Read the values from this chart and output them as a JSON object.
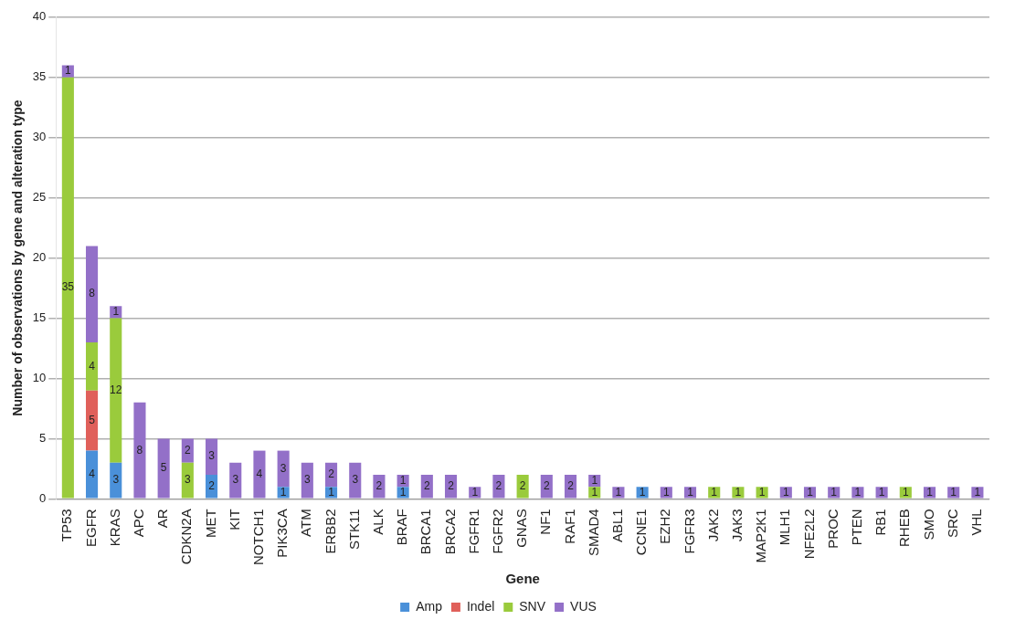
{
  "chart_data": {
    "type": "bar",
    "stacked": true,
    "xlabel": "Gene",
    "ylabel": "Number of observations by gene and alteration type",
    "categories": [
      "TP53",
      "EGFR",
      "KRAS",
      "APC",
      "AR",
      "CDKN2A",
      "MET",
      "KIT",
      "NOTCH1",
      "PIK3CA",
      "ATM",
      "ERBB2",
      "STK11",
      "ALK",
      "BRAF",
      "BRCA1",
      "BRCA2",
      "FGFR1",
      "FGFR2",
      "GNAS",
      "NF1",
      "RAF1",
      "SMAD4",
      "ABL1",
      "CCNE1",
      "EZH2",
      "FGFR3",
      "JAK2",
      "JAK3",
      "MAP2K1",
      "MLH1",
      "NFE2L2",
      "PROC",
      "PTEN",
      "RB1",
      "RHEB",
      "SMO",
      "SRC",
      "VHL"
    ],
    "series": [
      {
        "name": "Amp",
        "color": "#4a90d9",
        "values": [
          null,
          4,
          3,
          null,
          null,
          null,
          2,
          null,
          null,
          1,
          null,
          1,
          null,
          null,
          1,
          null,
          null,
          null,
          null,
          null,
          null,
          null,
          null,
          null,
          1,
          null,
          null,
          null,
          null,
          null,
          null,
          null,
          null,
          null,
          null,
          null,
          null,
          null,
          null
        ]
      },
      {
        "name": "Indel",
        "color": "#e0605a",
        "values": [
          null,
          5,
          null,
          null,
          null,
          null,
          null,
          null,
          null,
          null,
          null,
          null,
          null,
          null,
          null,
          null,
          null,
          null,
          null,
          null,
          null,
          null,
          null,
          null,
          null,
          null,
          null,
          null,
          null,
          null,
          null,
          null,
          null,
          null,
          null,
          null,
          null,
          null,
          null
        ]
      },
      {
        "name": "SNV",
        "color": "#9acb3c",
        "values": [
          35,
          4,
          12,
          null,
          null,
          3,
          null,
          null,
          null,
          null,
          null,
          null,
          null,
          null,
          null,
          null,
          null,
          null,
          null,
          2,
          null,
          null,
          1,
          null,
          null,
          null,
          null,
          1,
          1,
          1,
          null,
          null,
          null,
          null,
          null,
          1,
          null,
          null,
          null
        ]
      },
      {
        "name": "VUS",
        "color": "#9370c8",
        "values": [
          1,
          8,
          1,
          8,
          5,
          2,
          3,
          3,
          4,
          3,
          3,
          2,
          3,
          2,
          1,
          2,
          2,
          1,
          2,
          null,
          2,
          2,
          1,
          1,
          null,
          1,
          1,
          null,
          null,
          null,
          1,
          1,
          1,
          1,
          1,
          null,
          1,
          1,
          1
        ]
      }
    ],
    "ylim": [
      0,
      40
    ],
    "yticks": [
      0,
      5,
      10,
      15,
      20,
      25,
      30,
      35,
      40
    ],
    "grid": "y",
    "legend": "bottom",
    "data_labels": true
  }
}
